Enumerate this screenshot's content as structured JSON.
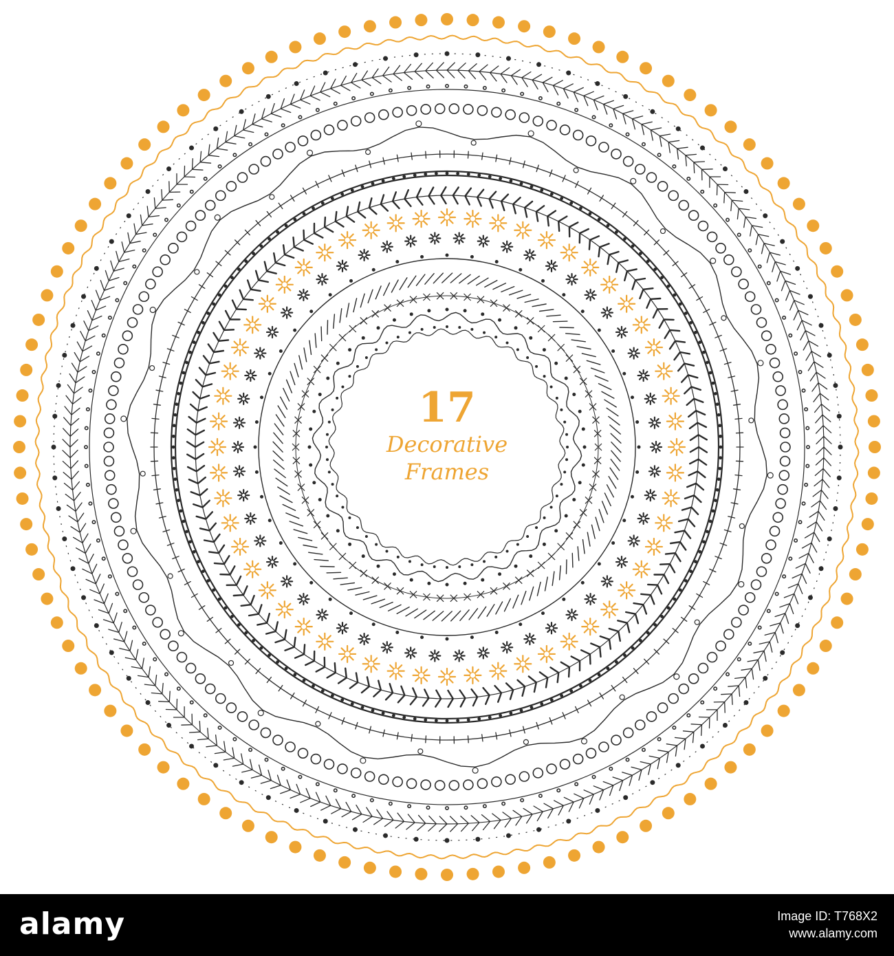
{
  "artwork": {
    "number": "17",
    "line1": "Decorative",
    "line2": "Frames"
  },
  "colors": {
    "gold": "#eea533",
    "ink": "#2a2a2a",
    "footer_bg": "#000000",
    "footer_text": "#ffffff"
  },
  "frames": [
    {
      "style": "gold-large-dots"
    },
    {
      "style": "gold-wavy-line"
    },
    {
      "style": "black-dot-line"
    },
    {
      "style": "leaf-garland"
    },
    {
      "style": "sprig-line"
    },
    {
      "style": "ring-chain"
    },
    {
      "style": "curl-flourish"
    },
    {
      "style": "stitch-line"
    },
    {
      "style": "beaded-double-line"
    },
    {
      "style": "herringbone-branch"
    },
    {
      "style": "gold-daisy-ring"
    },
    {
      "style": "dark-flower-ring"
    },
    {
      "style": "leaf-sprig-thin"
    },
    {
      "style": "dash-hatch"
    },
    {
      "style": "cross-stitch"
    },
    {
      "style": "berry-scallop"
    },
    {
      "style": "dotted-inner"
    }
  ],
  "footer": {
    "logo": "alamy",
    "image_id": "Image ID: T768X2",
    "url": "www.alamy.com"
  }
}
